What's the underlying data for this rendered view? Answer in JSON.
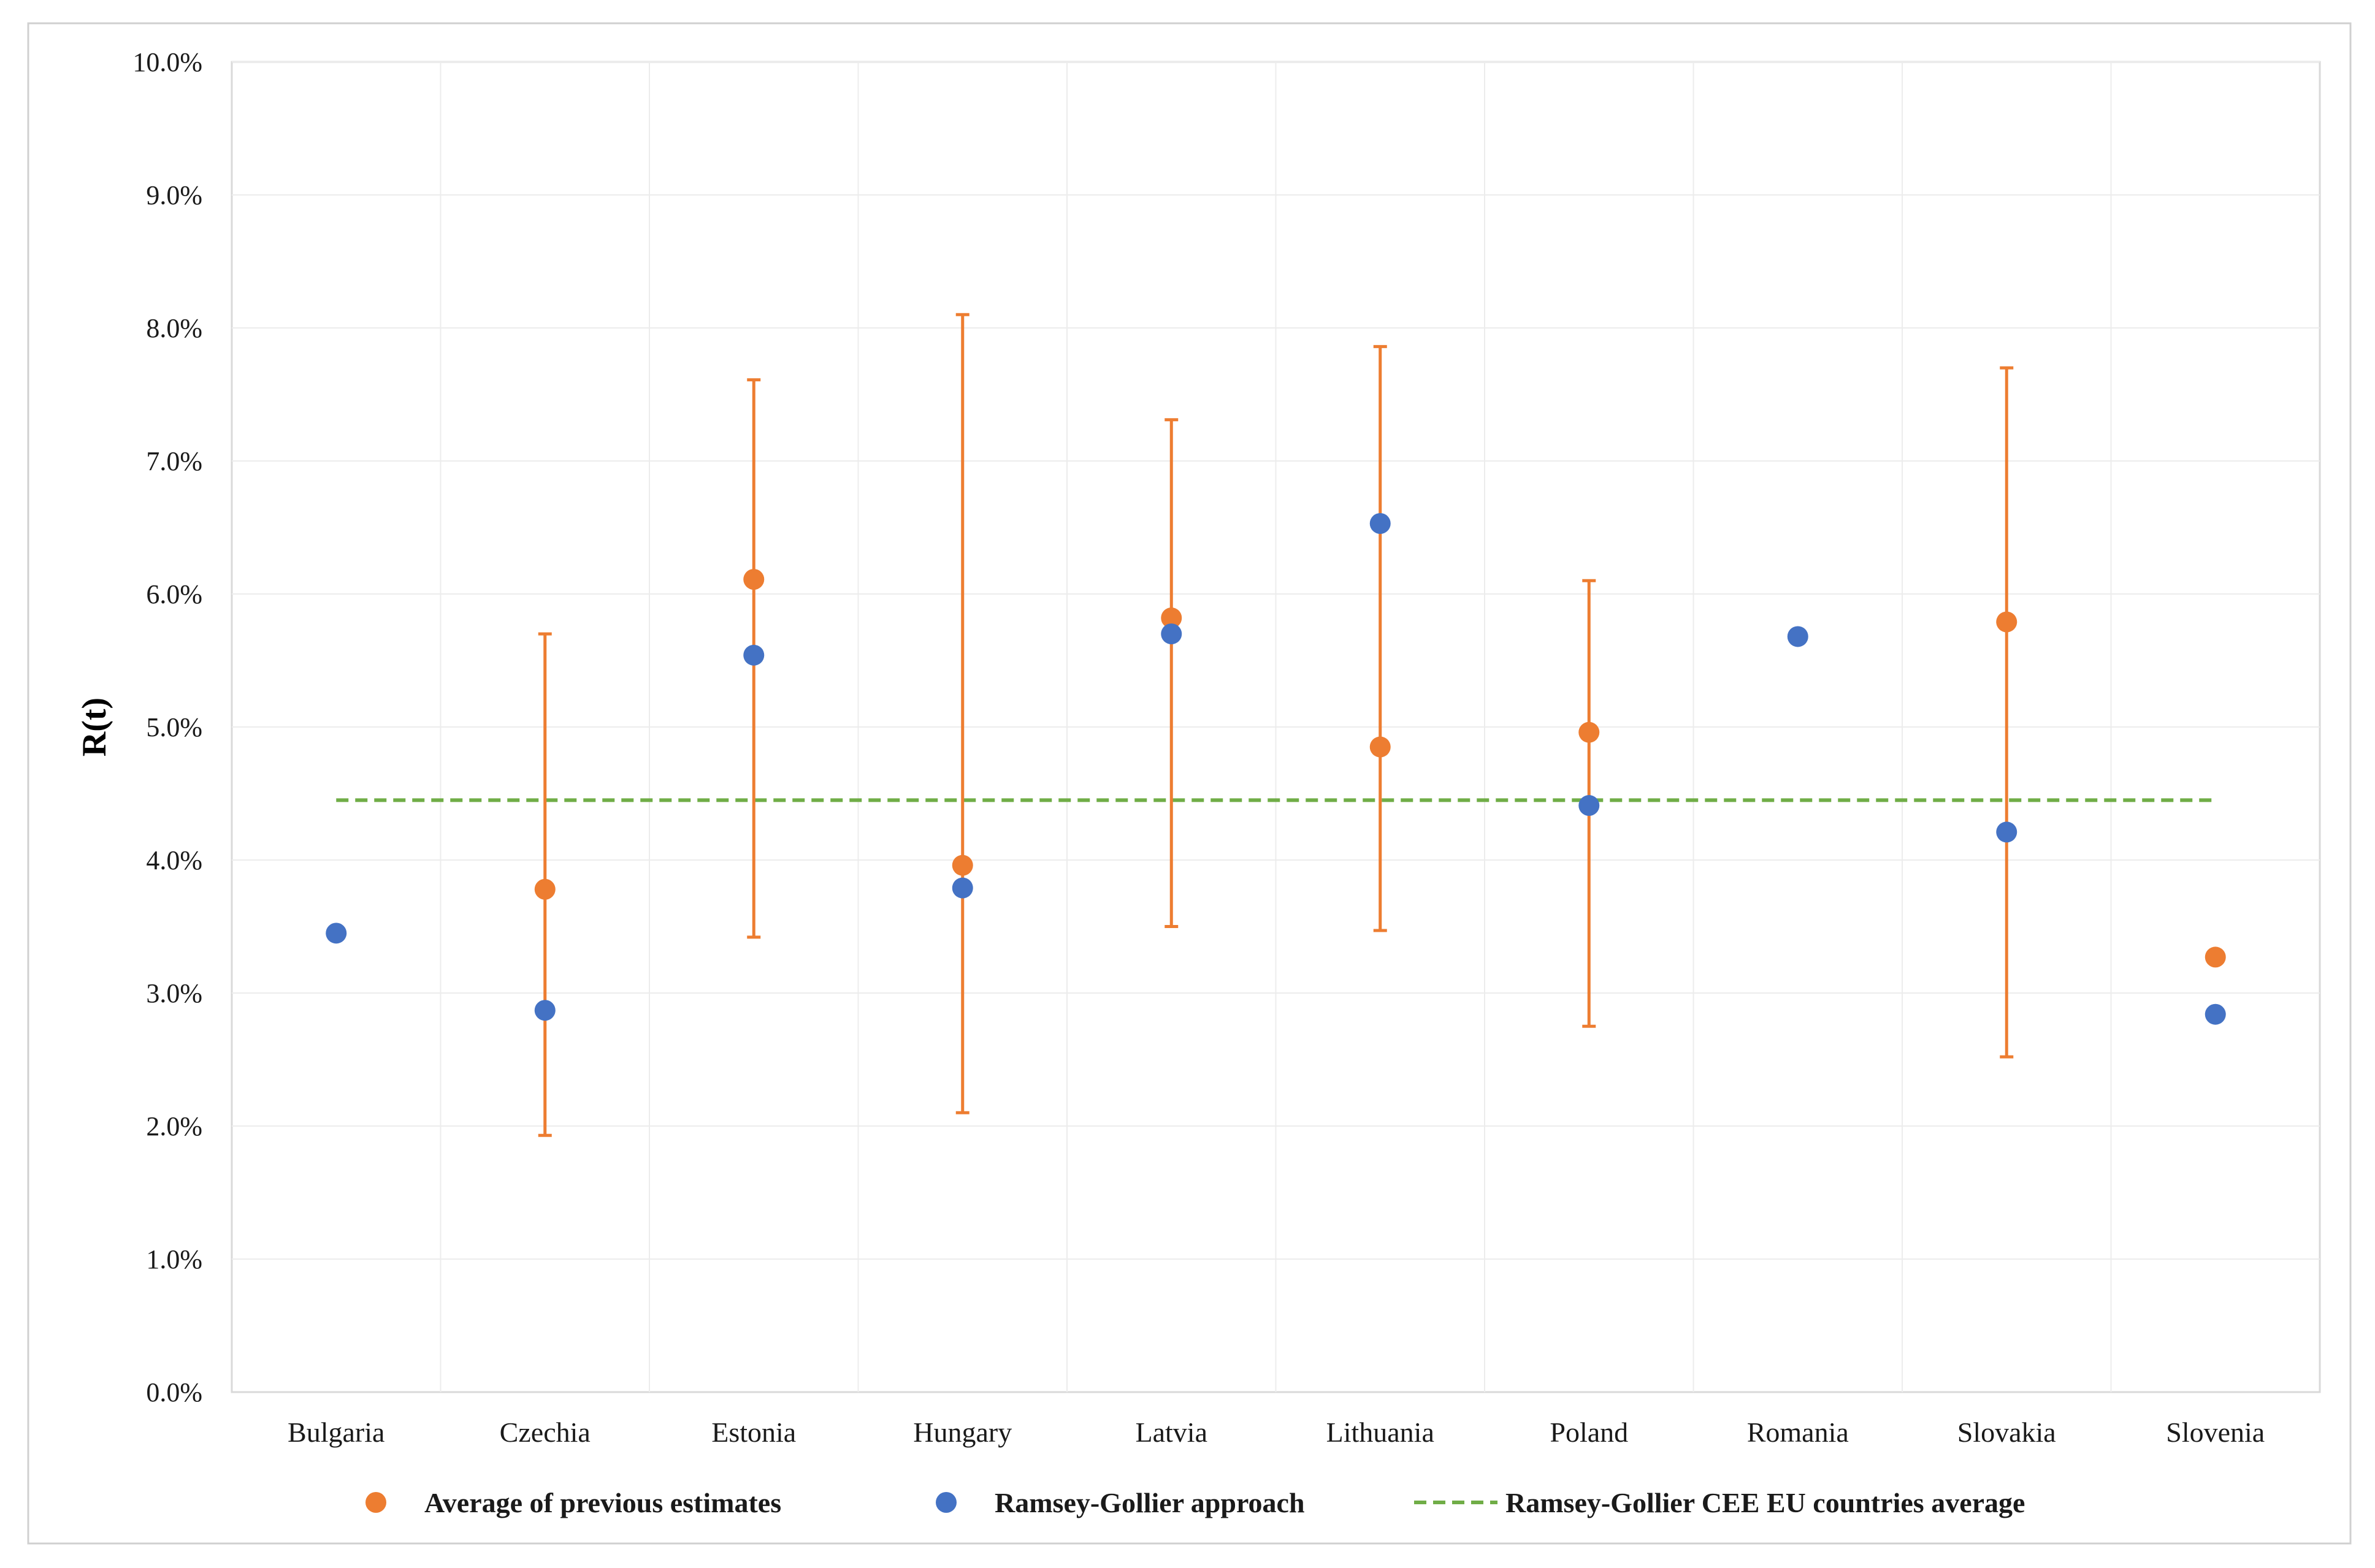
{
  "chart_data": {
    "type": "scatter",
    "title": "",
    "xlabel": "",
    "ylabel": "R(t)",
    "ylim": [
      0,
      10
    ],
    "yticks": [
      "0.0%",
      "1.0%",
      "2.0%",
      "3.0%",
      "4.0%",
      "5.0%",
      "6.0%",
      "7.0%",
      "8.0%",
      "9.0%",
      "10.0%"
    ],
    "grid": true,
    "legend_position": "bottom",
    "categories": [
      "Bulgaria",
      "Czechia",
      "Estonia",
      "Hungary",
      "Latvia",
      "Lithuania",
      "Poland",
      "Romania",
      "Slovakia",
      "Slovenia"
    ],
    "series": [
      {
        "name": "Average of previous estimates",
        "color": "#ED7D31",
        "marker": "circle",
        "values": [
          null,
          3.78,
          6.11,
          3.96,
          5.82,
          4.85,
          4.96,
          null,
          5.79,
          3.27
        ],
        "error_low": [
          null,
          1.93,
          3.42,
          2.1,
          3.5,
          3.47,
          2.75,
          null,
          2.52,
          null
        ],
        "error_high": [
          null,
          5.7,
          7.61,
          8.1,
          7.31,
          7.86,
          6.1,
          null,
          7.7,
          null
        ]
      },
      {
        "name": "Ramsey-Gollier approach",
        "color": "#4472C4",
        "marker": "circle",
        "values": [
          3.45,
          2.87,
          5.54,
          3.79,
          5.7,
          6.53,
          4.41,
          5.68,
          4.21,
          2.84
        ]
      },
      {
        "name": "Ramsey-Gollier CEE EU countries average",
        "color": "#70AD47",
        "style": "dashed-line",
        "value": 4.45
      }
    ]
  }
}
